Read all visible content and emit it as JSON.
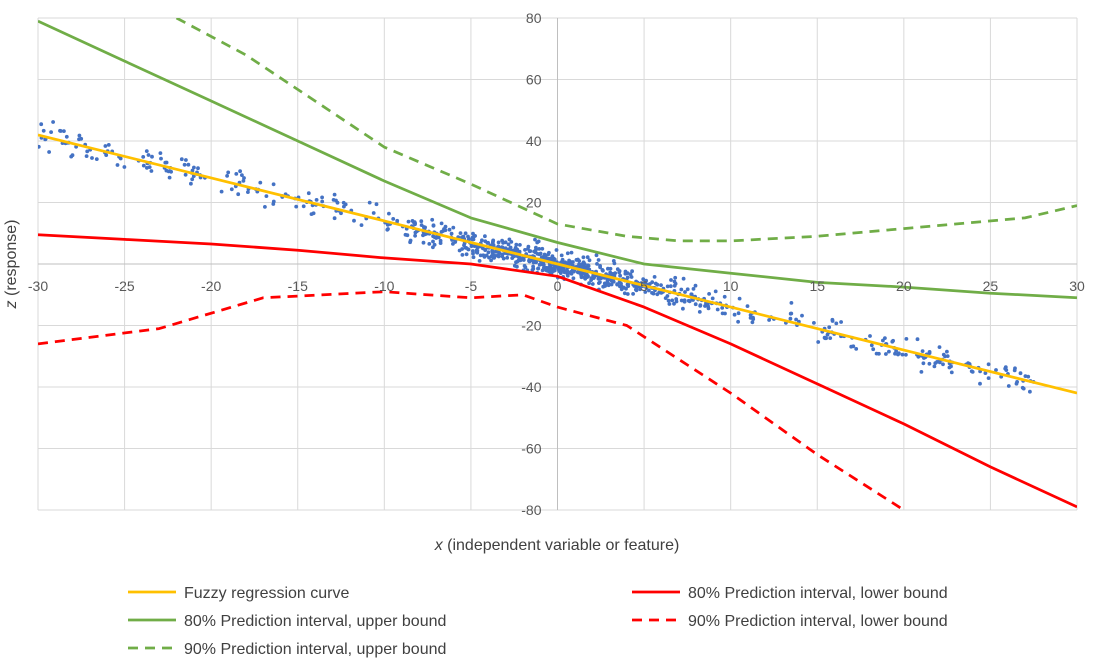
{
  "chart_data": {
    "type": "scatter",
    "title": "",
    "xlabel_var": "x",
    "xlabel_rest": " (independent variable or feature)",
    "ylabel_var": "z",
    "ylabel_rest": " (response)",
    "xlim": [
      -30,
      30
    ],
    "ylim": [
      -80,
      80
    ],
    "x_ticks": [
      -30,
      -25,
      -20,
      -15,
      -10,
      -5,
      0,
      5,
      10,
      15,
      20,
      25,
      30
    ],
    "y_ticks": [
      80,
      60,
      40,
      20,
      -20,
      -40,
      -60,
      -80
    ],
    "grid": true,
    "legend_position": "bottom",
    "scatter": {
      "name": "data points",
      "color": "#4472c4",
      "trend": {
        "slope": -1.4,
        "intercept": 0
      },
      "x_range": [
        -30,
        27.5
      ],
      "count": 900
    },
    "series": [
      {
        "name": "Fuzzy regression curve",
        "color": "#ffc000",
        "style": "solid",
        "x": [
          -30,
          -20,
          -10,
          0,
          10,
          20,
          30
        ],
        "y": [
          42,
          28,
          14,
          0,
          -14,
          -28,
          -42
        ]
      },
      {
        "name": "80% Prediction interval, lower bound",
        "color": "#ff0000",
        "style": "solid",
        "x": [
          -30,
          -25,
          -20,
          -15,
          -10,
          -5,
          0,
          5,
          10,
          15,
          20,
          25,
          30
        ],
        "y": [
          9.5,
          8,
          6.5,
          4.5,
          2,
          0,
          -4,
          -14,
          -26,
          -39,
          -52,
          -66,
          -79
        ]
      },
      {
        "name": "80% Prediction interval, upper bound",
        "color": "#70ad47",
        "style": "solid",
        "x": [
          -30,
          -25,
          -20,
          -15,
          -10,
          -5,
          0,
          5,
          10,
          15,
          20,
          25,
          30
        ],
        "y": [
          79,
          66,
          53,
          40,
          27,
          15,
          7,
          0,
          -3,
          -6,
          -7.5,
          -9.5,
          -11
        ]
      },
      {
        "name": "90% Prediction interval, lower bound",
        "color": "#ff0000",
        "style": "dashed",
        "x": [
          -30,
          -23,
          -17,
          -10,
          -5,
          -2,
          0,
          4,
          10,
          15,
          20
        ],
        "y": [
          -26,
          -21,
          -11,
          -9,
          -11,
          -10,
          -14,
          -20,
          -42,
          -62,
          -80
        ]
      },
      {
        "name": "90% Prediction interval, upper bound",
        "color": "#70ad47",
        "style": "dashed",
        "x": [
          -22,
          -18,
          -14,
          -10,
          -5,
          0,
          4,
          7,
          10,
          15,
          20,
          27,
          30
        ],
        "y": [
          80,
          68,
          53,
          38,
          26,
          13,
          9,
          7.5,
          7.5,
          9,
          11.5,
          15,
          19
        ]
      }
    ],
    "legend": [
      {
        "label": "Fuzzy regression curve",
        "color": "#ffc000",
        "style": "solid"
      },
      {
        "label": "80% Prediction interval, lower bound",
        "color": "#ff0000",
        "style": "solid"
      },
      {
        "label": "80% Prediction interval, upper bound",
        "color": "#70ad47",
        "style": "solid"
      },
      {
        "label": "90% Prediction interval, lower bound",
        "color": "#ff0000",
        "style": "dashed"
      },
      {
        "label": "90% Prediction interval, upper bound",
        "color": "#70ad47",
        "style": "dashed"
      }
    ]
  }
}
